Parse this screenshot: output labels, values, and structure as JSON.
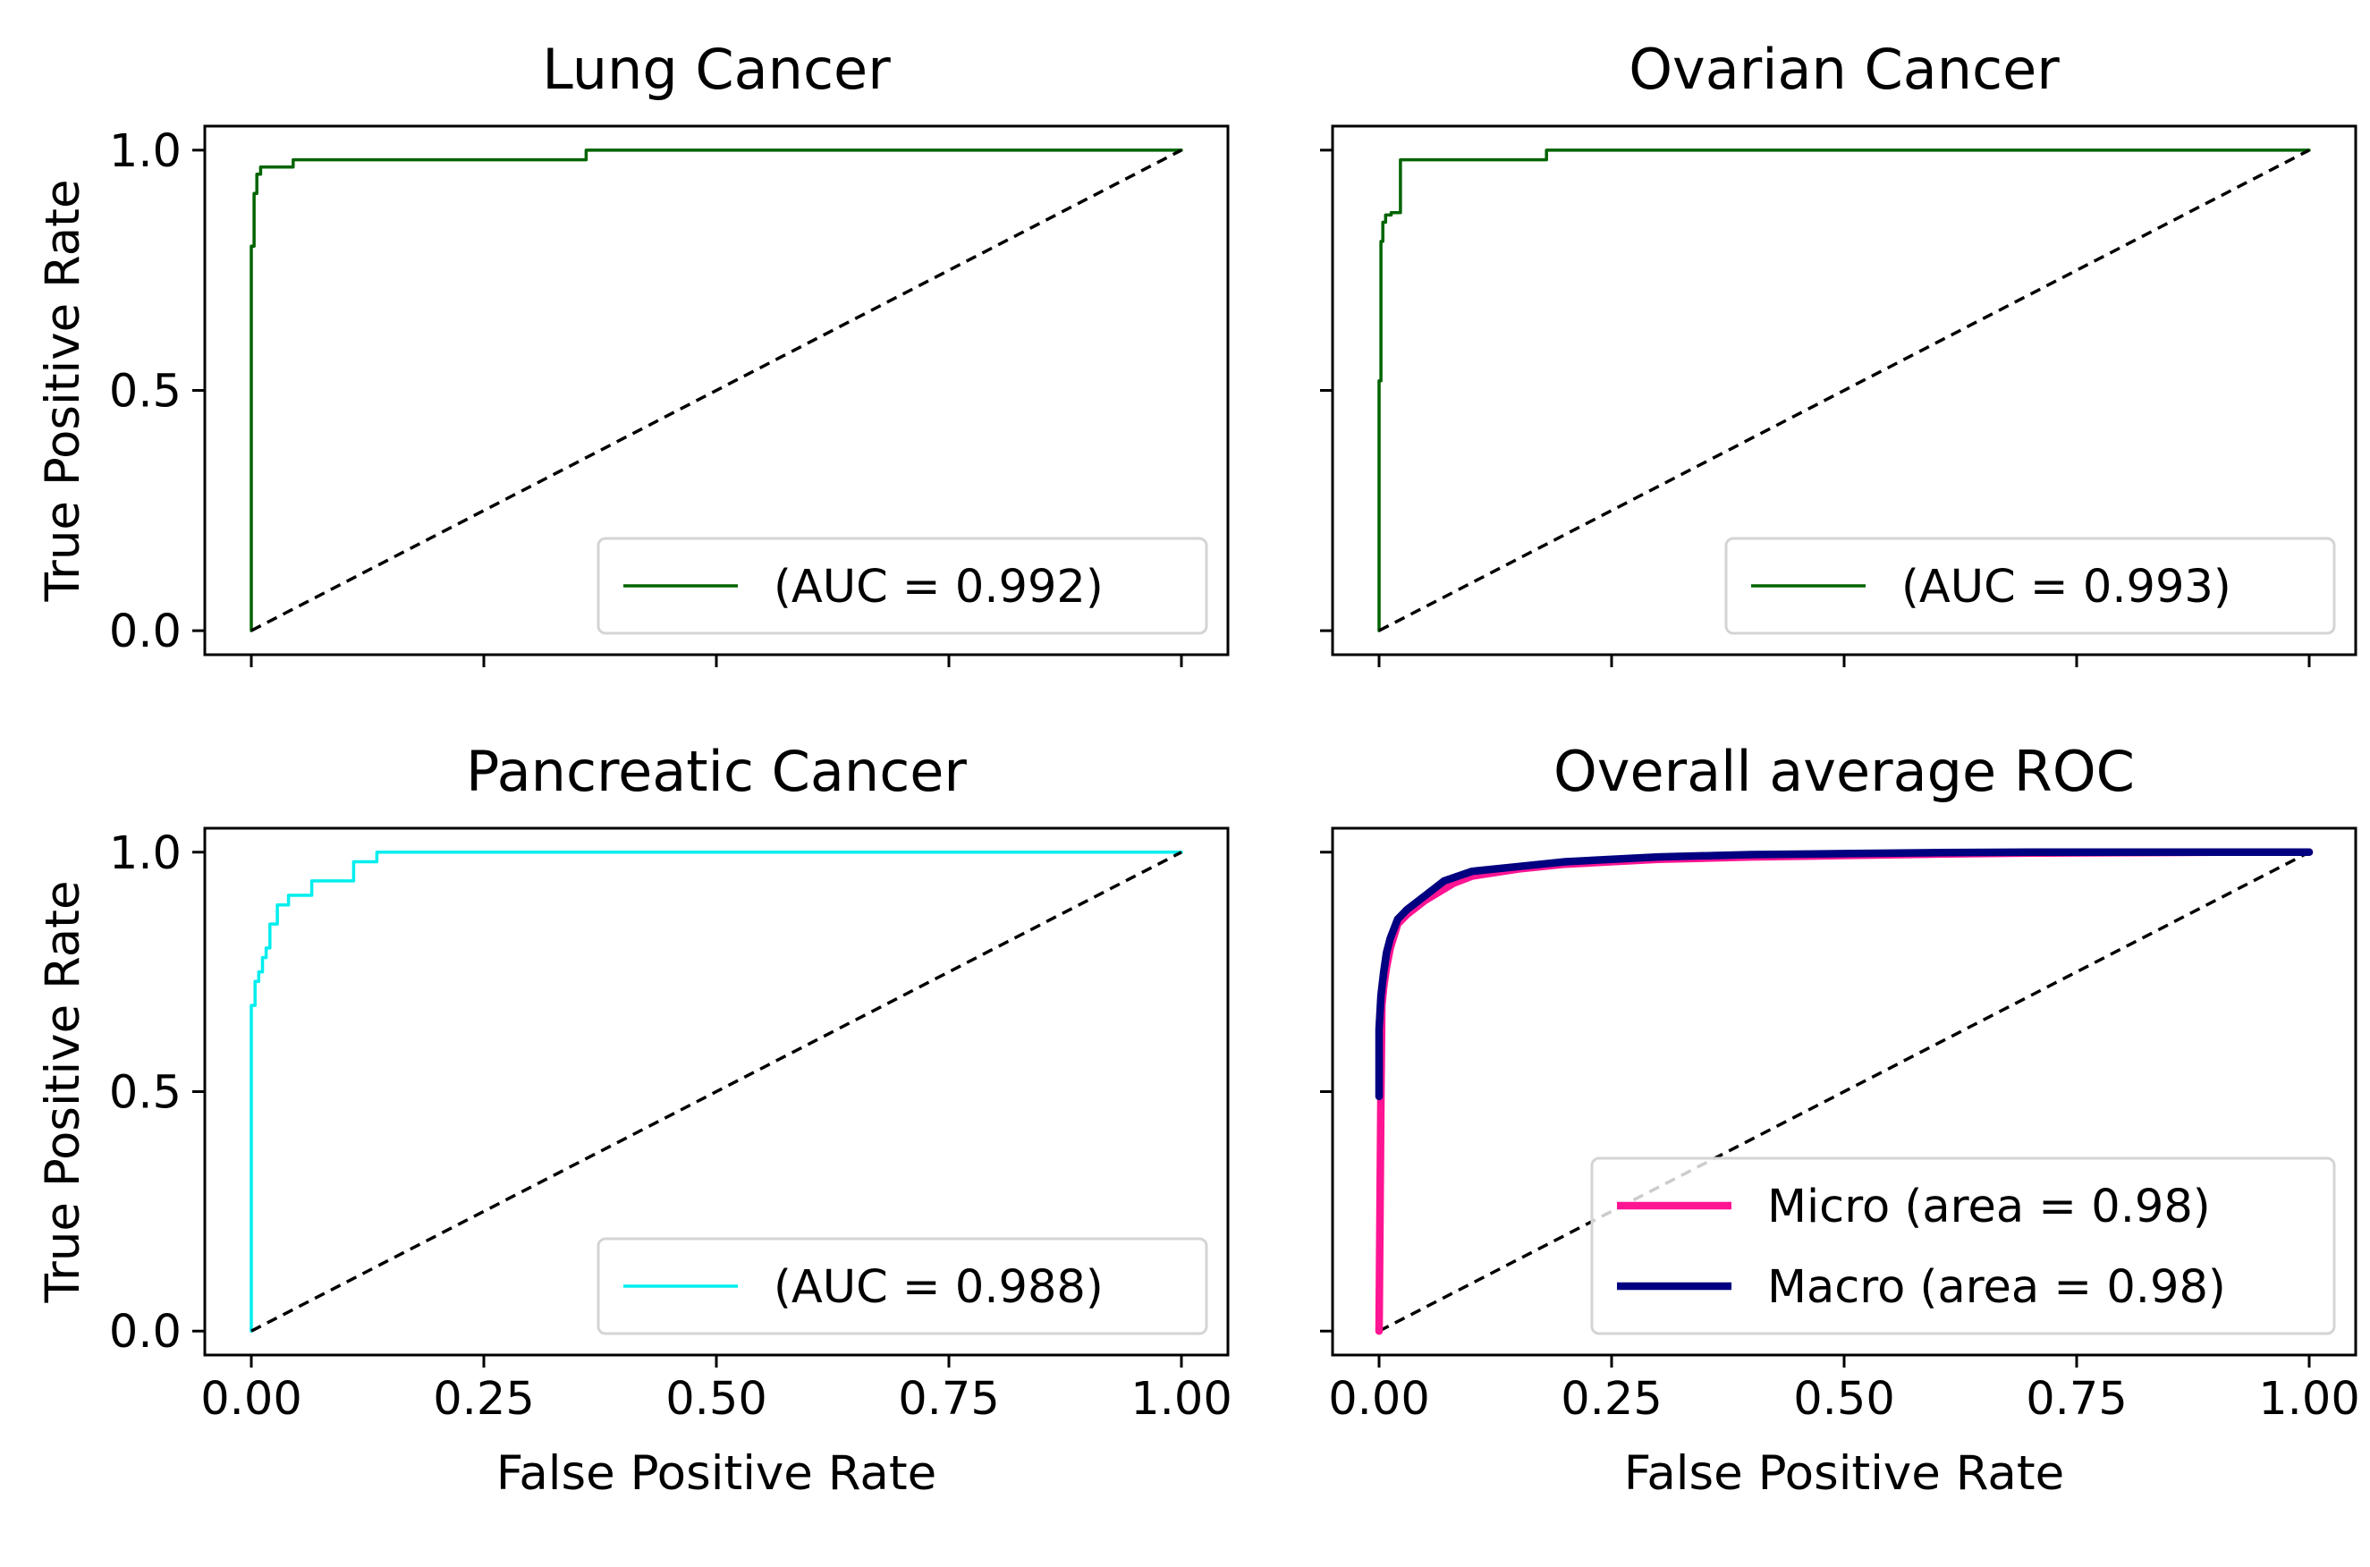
{
  "chart_data": [
    {
      "type": "line",
      "title": "Lung Cancer",
      "xlabel": "",
      "ylabel": "True Positive Rate",
      "xlim": [
        -0.05,
        1.05
      ],
      "ylim": [
        -0.05,
        1.05
      ],
      "xticks": [
        0.0,
        0.25,
        0.5,
        0.75,
        1.0
      ],
      "xtick_labels": [
        "",
        "",
        "",
        "",
        ""
      ],
      "yticks": [
        0.0,
        0.5,
        1.0
      ],
      "ytick_labels": [
        "0.0",
        "0.5",
        "1.0"
      ],
      "legend_position": "lower-right",
      "grid": false,
      "series": [
        {
          "name": "(AUC = 0.992)",
          "color": "#006400",
          "width": "thin",
          "x": [
            0,
            0,
            0.003,
            0.003,
            0.006,
            0.006,
            0.01,
            0.01,
            0.045,
            0.045,
            0.36,
            0.36,
            1.0
          ],
          "y": [
            0,
            0.8,
            0.8,
            0.91,
            0.91,
            0.95,
            0.95,
            0.965,
            0.965,
            0.98,
            0.98,
            1.0,
            1.0
          ]
        },
        {
          "name": "",
          "color": "#000000",
          "dash": true,
          "x": [
            0,
            1
          ],
          "y": [
            0,
            1
          ]
        }
      ]
    },
    {
      "type": "line",
      "title": "Ovarian Cancer",
      "xlabel": "",
      "ylabel": "",
      "xlim": [
        -0.05,
        1.05
      ],
      "ylim": [
        -0.05,
        1.05
      ],
      "xticks": [
        0.0,
        0.25,
        0.5,
        0.75,
        1.0
      ],
      "xtick_labels": [
        "",
        "",
        "",
        "",
        ""
      ],
      "yticks": [
        0.0,
        0.5,
        1.0
      ],
      "ytick_labels": [
        "",
        "",
        ""
      ],
      "legend_position": "lower-right",
      "grid": false,
      "series": [
        {
          "name": "(AUC = 0.993)",
          "color": "#006400",
          "width": "thin",
          "x": [
            0,
            0,
            0.002,
            0.002,
            0.004,
            0.004,
            0.007,
            0.007,
            0.013,
            0.013,
            0.023,
            0.023,
            0.18,
            0.18,
            1.0
          ],
          "y": [
            0,
            0.52,
            0.52,
            0.81,
            0.81,
            0.85,
            0.85,
            0.865,
            0.865,
            0.87,
            0.87,
            0.98,
            0.98,
            1.0,
            1.0
          ]
        },
        {
          "name": "",
          "color": "#000000",
          "dash": true,
          "x": [
            0,
            1
          ],
          "y": [
            0,
            1
          ]
        }
      ]
    },
    {
      "type": "line",
      "title": "Pancreatic Cancer",
      "xlabel": "False Positive Rate",
      "ylabel": "True Positive Rate",
      "xlim": [
        -0.05,
        1.05
      ],
      "ylim": [
        -0.05,
        1.05
      ],
      "xticks": [
        0.0,
        0.25,
        0.5,
        0.75,
        1.0
      ],
      "xtick_labels": [
        "0.00",
        "0.25",
        "0.50",
        "0.75",
        "1.00"
      ],
      "yticks": [
        0.0,
        0.5,
        1.0
      ],
      "ytick_labels": [
        "0.0",
        "0.5",
        "1.0"
      ],
      "legend_position": "lower-right",
      "grid": false,
      "series": [
        {
          "name": "(AUC = 0.988)",
          "color": "#00eeee",
          "width": "thin",
          "x": [
            0,
            0,
            0.004,
            0.004,
            0.008,
            0.008,
            0.012,
            0.012,
            0.016,
            0.016,
            0.02,
            0.02,
            0.028,
            0.028,
            0.04,
            0.04,
            0.065,
            0.065,
            0.11,
            0.11,
            0.135,
            0.135,
            1.0
          ],
          "y": [
            0,
            0.68,
            0.68,
            0.73,
            0.73,
            0.75,
            0.75,
            0.78,
            0.78,
            0.8,
            0.8,
            0.85,
            0.85,
            0.89,
            0.89,
            0.91,
            0.91,
            0.94,
            0.94,
            0.98,
            0.98,
            1.0,
            1.0
          ]
        },
        {
          "name": "",
          "color": "#000000",
          "dash": true,
          "x": [
            0,
            1
          ],
          "y": [
            0,
            1
          ]
        }
      ]
    },
    {
      "type": "line",
      "title": "Overall average ROC",
      "xlabel": "False Positive Rate",
      "ylabel": "",
      "xlim": [
        -0.05,
        1.05
      ],
      "ylim": [
        -0.05,
        1.05
      ],
      "xticks": [
        0.0,
        0.25,
        0.5,
        0.75,
        1.0
      ],
      "xtick_labels": [
        "0.00",
        "0.25",
        "0.50",
        "0.75",
        "1.00"
      ],
      "yticks": [
        0.0,
        0.5,
        1.0
      ],
      "ytick_labels": [
        "",
        "",
        ""
      ],
      "legend_position": "lower-right",
      "grid": false,
      "series": [
        {
          "name": "",
          "color": "#000000",
          "dash": true,
          "x": [
            0,
            1
          ],
          "y": [
            0,
            1
          ]
        },
        {
          "name": "Micro (area = 0.98)",
          "color": "#ff1493",
          "width": "thick",
          "x": [
            0,
            0.002,
            0.003,
            0.005,
            0.008,
            0.012,
            0.02,
            0.03,
            0.05,
            0.08,
            0.1,
            0.15,
            0.2,
            0.3,
            0.4,
            0.5,
            0.6,
            0.7,
            0.8,
            0.9,
            1.0
          ],
          "y": [
            0,
            0.5,
            0.68,
            0.72,
            0.76,
            0.8,
            0.85,
            0.87,
            0.9,
            0.935,
            0.95,
            0.965,
            0.975,
            0.985,
            0.99,
            0.993,
            0.996,
            0.998,
            0.999,
            1.0,
            1.0
          ]
        },
        {
          "name": "Macro (area = 0.98)",
          "color": "#000080",
          "width": "thick",
          "x": [
            0,
            0,
            0.002,
            0.005,
            0.008,
            0.012,
            0.02,
            0.03,
            0.05,
            0.07,
            0.1,
            0.15,
            0.2,
            0.3,
            0.4,
            0.5,
            0.6,
            0.7,
            0.8,
            0.9,
            1.0
          ],
          "y": [
            0.49,
            0.63,
            0.7,
            0.75,
            0.79,
            0.82,
            0.86,
            0.88,
            0.91,
            0.94,
            0.96,
            0.97,
            0.98,
            0.99,
            0.995,
            0.997,
            0.999,
            1.0,
            1.0,
            1.0,
            1.0
          ]
        }
      ]
    }
  ]
}
